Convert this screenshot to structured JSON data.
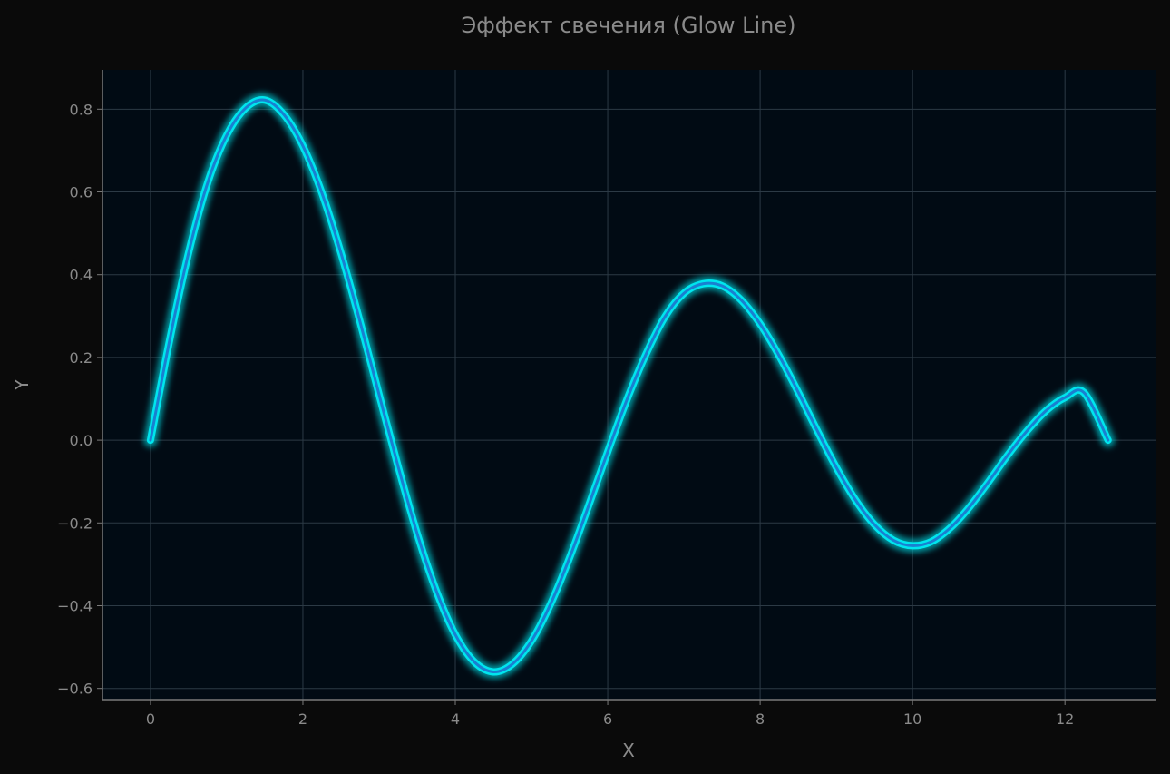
{
  "chart_data": {
    "type": "line",
    "title": "Эффект свечения (Glow Line)",
    "xlabel": "X",
    "ylabel": "Y",
    "xlim": [
      -0.63,
      13.2
    ],
    "ylim": [
      -0.627,
      0.895
    ],
    "xticks": [
      0,
      2,
      4,
      6,
      8,
      10,
      12
    ],
    "xtick_labels": [
      "0",
      "2",
      "4",
      "6",
      "8",
      "10",
      "12"
    ],
    "yticks": [
      -0.6,
      -0.4,
      -0.2,
      0.0,
      0.2,
      0.4,
      0.6,
      0.8
    ],
    "ytick_labels": [
      "−0.6",
      "−0.4",
      "−0.2",
      "0.0",
      "0.2",
      "0.4",
      "0.6",
      "0.8"
    ],
    "grid": true,
    "series": [
      {
        "x": [
          0,
          0.25,
          0.5,
          0.75,
          1.0,
          1.25,
          1.5,
          1.75,
          2.0,
          2.25,
          2.5,
          2.75,
          3.0,
          3.25,
          3.5,
          3.75,
          4.0,
          4.25,
          4.5,
          4.75,
          5.0,
          5.25,
          5.5,
          5.75,
          6.0,
          6.25,
          6.5,
          6.75,
          7.0,
          7.25,
          7.5,
          7.75,
          8.0,
          8.25,
          8.5,
          8.75,
          9.0,
          9.25,
          9.5,
          9.75,
          10.0,
          10.25,
          10.5,
          10.75,
          11.0,
          11.25,
          11.5,
          11.75,
          12.0,
          12.25,
          12.566
        ],
        "y": [
          0,
          0.241,
          0.453,
          0.622,
          0.737,
          0.803,
          0.822,
          0.787,
          0.711,
          0.597,
          0.452,
          0.286,
          0.11,
          -0.064,
          -0.226,
          -0.364,
          -0.47,
          -0.536,
          -0.56,
          -0.541,
          -0.485,
          -0.396,
          -0.284,
          -0.158,
          -0.028,
          0.097,
          0.207,
          0.298,
          0.355,
          0.378,
          0.373,
          0.339,
          0.281,
          0.204,
          0.116,
          0.023,
          -0.066,
          -0.144,
          -0.204,
          -0.242,
          -0.255,
          -0.245,
          -0.211,
          -0.161,
          -0.1,
          -0.036,
          0.022,
          0.071,
          0.103,
          0.115,
          0
        ]
      }
    ],
    "colors": {
      "figure_bg": "#0a0a0a",
      "plot_bg": "#010b14",
      "line_core": "#1a7fd0",
      "line_glow": "#00e5ee",
      "grid": "#2c3a45",
      "spine": "#7a7a7a",
      "text": "#8a8a8a"
    }
  }
}
